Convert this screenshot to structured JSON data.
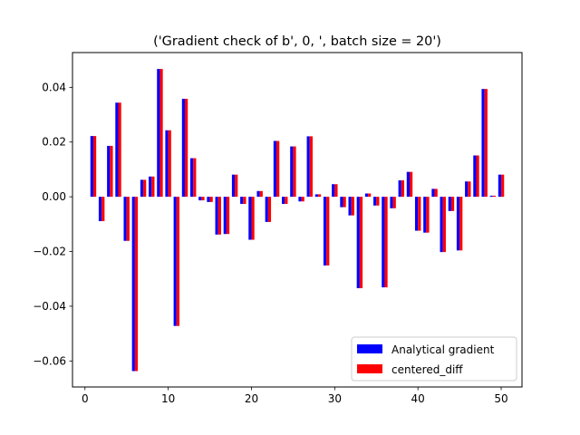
{
  "chart_data": {
    "type": "bar",
    "title": "('Gradient check of b', 0, ', batch size = 20')",
    "xlabel": "",
    "ylabel": "",
    "xlim": [
      -1.5,
      52.5
    ],
    "ylim": [
      -0.0695,
      0.0527
    ],
    "x_ticks": [
      0,
      10,
      20,
      30,
      40,
      50
    ],
    "y_ticks": [
      -0.06,
      -0.04,
      -0.02,
      0.0,
      0.02,
      0.04
    ],
    "y_tick_labels": [
      "−0.06",
      "−0.04",
      "−0.02",
      "0.00",
      "0.02",
      "0.04"
    ],
    "x": [
      1,
      2,
      3,
      4,
      5,
      6,
      7,
      8,
      9,
      10,
      11,
      12,
      13,
      14,
      15,
      16,
      17,
      18,
      19,
      20,
      21,
      22,
      23,
      24,
      25,
      26,
      27,
      28,
      29,
      30,
      31,
      32,
      33,
      34,
      35,
      36,
      37,
      38,
      39,
      40,
      41,
      42,
      43,
      44,
      45,
      46,
      47,
      48,
      49,
      50
    ],
    "series": [
      {
        "name": "Analytical gradient",
        "color": "#0000ff",
        "values": [
          0.0222,
          -0.0089,
          0.0186,
          0.0344,
          -0.0161,
          -0.0637,
          0.0062,
          0.0074,
          0.0467,
          0.0243,
          -0.0472,
          0.0358,
          0.0141,
          -0.0013,
          -0.0019,
          -0.0138,
          -0.0136,
          0.0081,
          -0.0026,
          -0.0157,
          0.0021,
          -0.0092,
          0.0204,
          -0.0026,
          0.0184,
          -0.0017,
          0.0221,
          0.0009,
          -0.0251,
          0.0046,
          -0.0038,
          -0.0068,
          -0.0334,
          0.0012,
          -0.0032,
          -0.0331,
          -0.0042,
          0.006,
          0.0091,
          -0.0124,
          -0.0131,
          0.0029,
          -0.0202,
          -0.0052,
          -0.0196,
          0.0056,
          0.0151,
          0.0394,
          0.0004,
          0.0081
        ]
      },
      {
        "name": "centered_diff",
        "color": "#ff0000",
        "values": [
          0.0222,
          -0.0089,
          0.0186,
          0.0344,
          -0.0161,
          -0.0637,
          0.0062,
          0.0074,
          0.0467,
          0.0243,
          -0.0472,
          0.0358,
          0.0141,
          -0.0013,
          -0.0019,
          -0.0138,
          -0.0136,
          0.0081,
          -0.0026,
          -0.0157,
          0.0021,
          -0.0092,
          0.0204,
          -0.0026,
          0.0184,
          -0.0017,
          0.0221,
          0.0009,
          -0.0251,
          0.0046,
          -0.0038,
          -0.0068,
          -0.0334,
          0.0012,
          -0.0032,
          -0.0331,
          -0.0042,
          0.006,
          0.0091,
          -0.0124,
          -0.0131,
          0.0029,
          -0.0202,
          -0.0052,
          -0.0196,
          0.0056,
          0.0151,
          0.0394,
          0.0004,
          0.0081
        ]
      }
    ],
    "legend_position": "lower-right",
    "grid": false
  }
}
